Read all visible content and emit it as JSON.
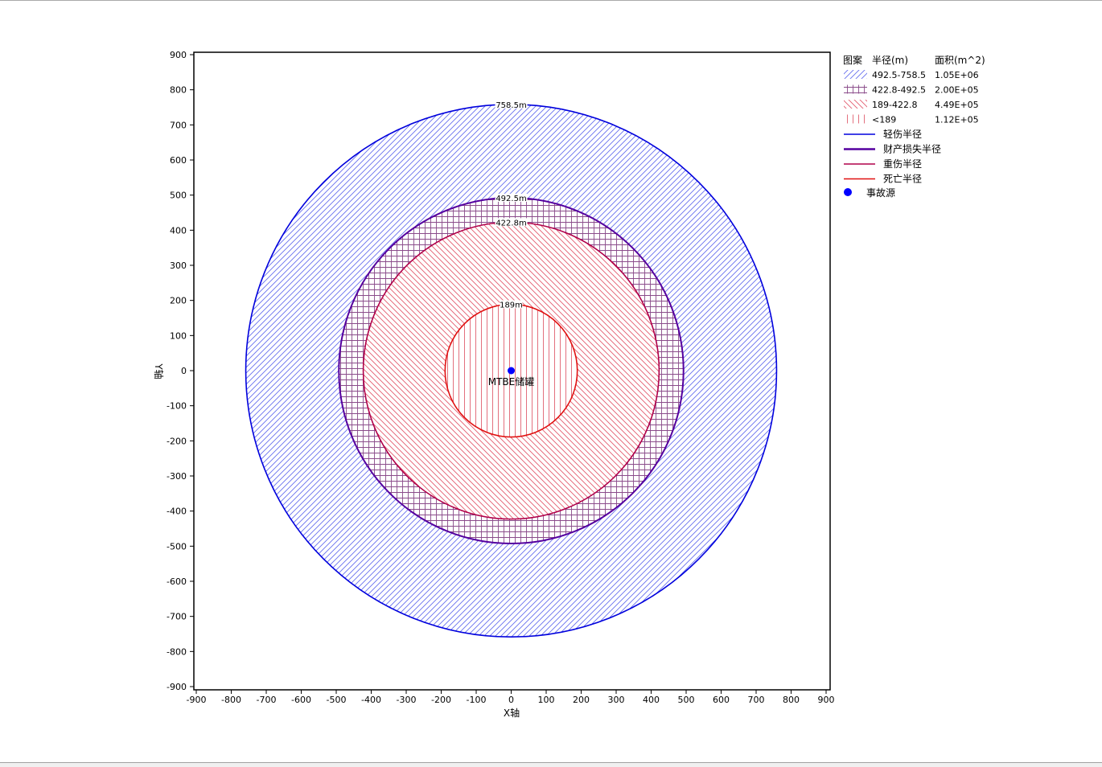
{
  "chart_data": {
    "type": "area",
    "xlabel": "X轴",
    "ylabel": "Y轴",
    "xlim": [
      -900,
      900
    ],
    "ylim": [
      -900,
      900
    ],
    "ticks": [
      -900,
      -800,
      -700,
      -600,
      -500,
      -400,
      -300,
      -200,
      -100,
      0,
      100,
      200,
      300,
      400,
      500,
      600,
      700,
      800,
      900
    ],
    "rings": [
      {
        "radius": 758.5,
        "label": "758.5m",
        "color": "#0000dd",
        "hatch": "diag-right",
        "hatch_color": "#6670ee"
      },
      {
        "radius": 492.5,
        "label": "492.5m",
        "color": "#55009f",
        "hatch": "grid",
        "hatch_color": "#8a4b8a"
      },
      {
        "radius": 422.8,
        "label": "422.8m",
        "color": "#b0004a",
        "hatch": "diag-left",
        "hatch_color": "#e25b6d"
      },
      {
        "radius": 189,
        "label": "189m",
        "color": "#e01010",
        "hatch": "vertical",
        "hatch_color": "#e06070"
      }
    ],
    "source": {
      "x": 0,
      "y": 0,
      "label": "MTBE储罐",
      "color": "#0000ff"
    },
    "legend": {
      "position": "right",
      "headers": [
        "图案",
        "半径(m)",
        "面积(m^2)"
      ],
      "patterns": [
        {
          "range": "492.5-758.5",
          "area": "1.05E+06",
          "hatch": "diag-right",
          "color": "#6670ee"
        },
        {
          "range": "422.8-492.5",
          "area": "2.00E+05",
          "hatch": "grid",
          "color": "#8a4b8a"
        },
        {
          "range": "189-422.8",
          "area": "4.49E+05",
          "hatch": "diag-left",
          "color": "#e25b6d"
        },
        {
          "range": "<189",
          "area": "1.12E+05",
          "hatch": "vertical",
          "color": "#e06070"
        }
      ],
      "lines": [
        {
          "label": "轻伤半径",
          "color": "#0000dd",
          "width": 1.5
        },
        {
          "label": "财产损失半径",
          "color": "#55009f",
          "width": 2.5
        },
        {
          "label": "重伤半径",
          "color": "#b0004a",
          "width": 1.5
        },
        {
          "label": "死亡半径",
          "color": "#e01010",
          "width": 1.5
        }
      ],
      "marker": {
        "label": "事故源",
        "color": "#0000ff"
      }
    }
  }
}
